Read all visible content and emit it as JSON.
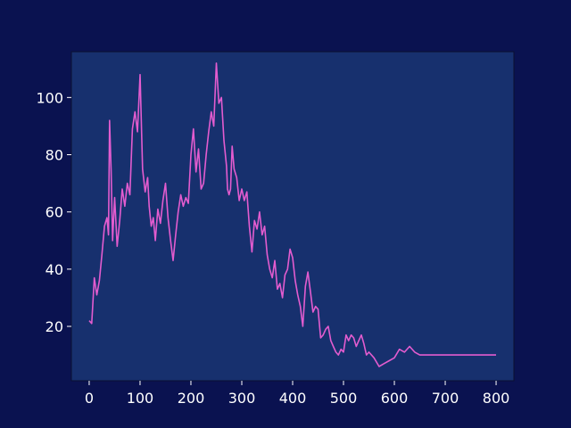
{
  "chart_data": {
    "type": "line",
    "title": "",
    "xlabel": "",
    "ylabel": "",
    "xlim": [
      -35,
      835
    ],
    "ylim": [
      1,
      116
    ],
    "xticks": [
      0,
      100,
      200,
      300,
      400,
      500,
      600,
      700,
      800
    ],
    "yticks": [
      20,
      40,
      60,
      80,
      100
    ],
    "grid": false,
    "colors": {
      "background": "#0a1250",
      "plot_area": "#17306e",
      "line": "#e35ccf",
      "text": "#ffffff"
    },
    "series": [
      {
        "x": [
          0,
          5,
          10,
          15,
          20,
          25,
          30,
          35,
          38,
          40,
          43,
          46,
          50,
          55,
          60,
          65,
          70,
          75,
          80,
          85,
          90,
          95,
          100,
          105,
          110,
          115,
          118,
          122,
          126,
          130,
          135,
          140,
          145,
          150,
          155,
          160,
          165,
          170,
          175,
          180,
          185,
          190,
          195,
          200,
          205,
          210,
          215,
          220,
          225,
          230,
          235,
          240,
          245,
          250,
          255,
          260,
          265,
          270,
          272,
          275,
          278,
          281,
          285,
          290,
          295,
          300,
          305,
          310,
          315,
          320,
          325,
          330,
          335,
          340,
          345,
          350,
          355,
          360,
          365,
          370,
          375,
          380,
          385,
          390,
          395,
          400,
          405,
          410,
          415,
          420,
          425,
          430,
          435,
          440,
          445,
          450,
          455,
          460,
          465,
          470,
          475,
          480,
          485,
          490,
          495,
          500,
          505,
          510,
          515,
          520,
          525,
          530,
          535,
          540,
          545,
          550,
          560,
          570,
          580,
          590,
          600,
          610,
          620,
          630,
          640,
          650,
          660,
          670,
          680,
          690,
          700,
          710,
          720,
          730,
          740,
          750,
          760,
          770,
          780,
          790,
          800
        ],
        "y": [
          22,
          21,
          37,
          31,
          36,
          45,
          55,
          58,
          52,
          92,
          75,
          50,
          65,
          48,
          57,
          68,
          62,
          70,
          66,
          89,
          95,
          88,
          108,
          75,
          67,
          72,
          62,
          55,
          58,
          50,
          61,
          56,
          64,
          70,
          58,
          50,
          43,
          52,
          60,
          66,
          62,
          65,
          63,
          80,
          89,
          74,
          82,
          68,
          70,
          80,
          88,
          95,
          90,
          112,
          98,
          100,
          85,
          76,
          68,
          66,
          68,
          83,
          75,
          72,
          64,
          68,
          64,
          67,
          55,
          46,
          57,
          54,
          60,
          52,
          55,
          45,
          40,
          37,
          43,
          33,
          35,
          30,
          38,
          40,
          47,
          44,
          36,
          31,
          27,
          20,
          34,
          39,
          32,
          25,
          27,
          26,
          16,
          17,
          19,
          20,
          15,
          13,
          11,
          10,
          12,
          11,
          17,
          15,
          17,
          16,
          13,
          15,
          17,
          14,
          10,
          11,
          9,
          6,
          7,
          8,
          9,
          12,
          11,
          13,
          11,
          10,
          10,
          10,
          10,
          10,
          10,
          10,
          10,
          10,
          10,
          10,
          10,
          10,
          10,
          10,
          10
        ],
        "y_override_note": null
      }
    ]
  }
}
